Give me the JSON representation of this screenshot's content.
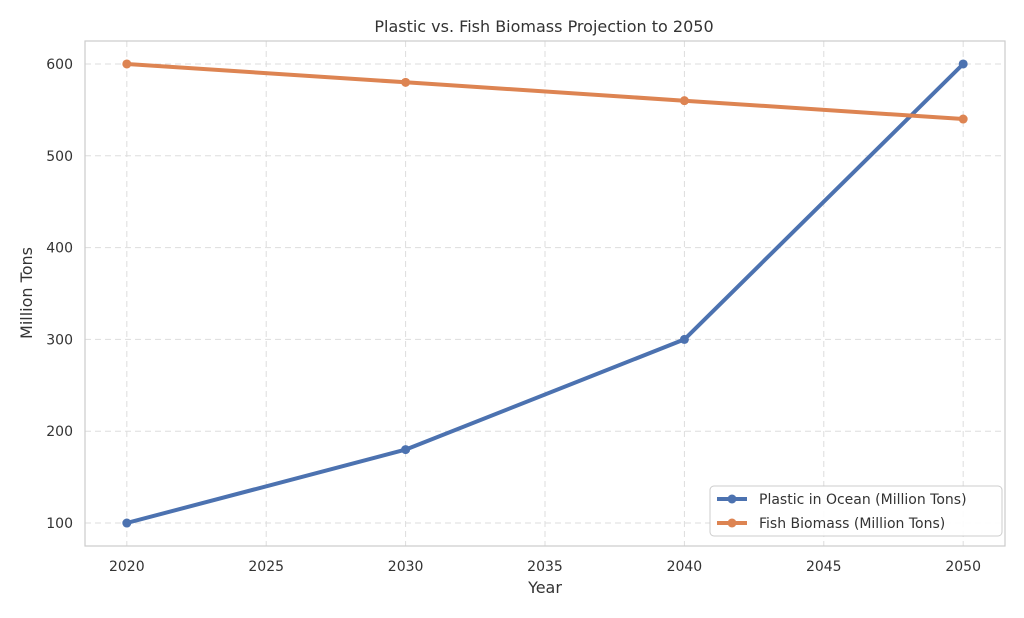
{
  "chart_data": {
    "type": "line",
    "title": "Plastic vs. Fish Biomass Projection to 2050",
    "xlabel": "Year",
    "ylabel": "Million Tons",
    "x": [
      2020,
      2030,
      2040,
      2050
    ],
    "xlim": [
      2018.5,
      2051.5
    ],
    "ylim": [
      75,
      625
    ],
    "xticks": [
      2020,
      2025,
      2030,
      2035,
      2040,
      2045,
      2050
    ],
    "yticks": [
      100,
      200,
      300,
      400,
      500,
      600
    ],
    "grid": true,
    "legend_position": "bottom-right",
    "series": [
      {
        "name": "Plastic in Ocean (Million Tons)",
        "values": [
          100,
          180,
          300,
          600
        ],
        "color": "#4c72b0",
        "marker": "circle"
      },
      {
        "name": "Fish Biomass (Million Tons)",
        "values": [
          600,
          580,
          560,
          540
        ],
        "color": "#dd8452",
        "marker": "circle"
      }
    ]
  }
}
